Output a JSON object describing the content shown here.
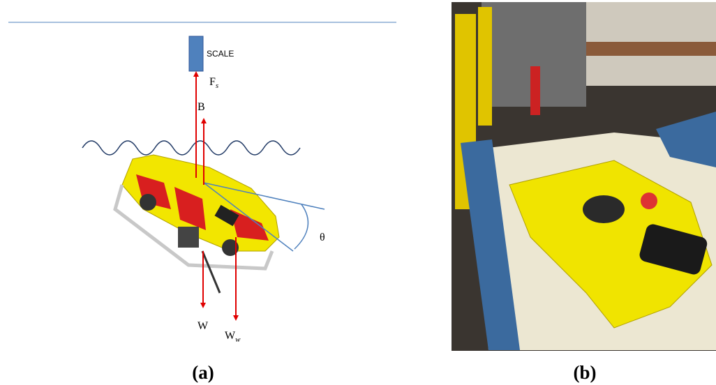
{
  "panel_a": {
    "scale_label": "SCALE",
    "force_scale": "F",
    "force_scale_sub": "s",
    "buoyancy": "B",
    "weight": "W",
    "weight_water": "W",
    "weight_water_sub": "w",
    "angle": "θ",
    "caption": "(a)"
  },
  "panel_b": {
    "caption": "(b)"
  }
}
